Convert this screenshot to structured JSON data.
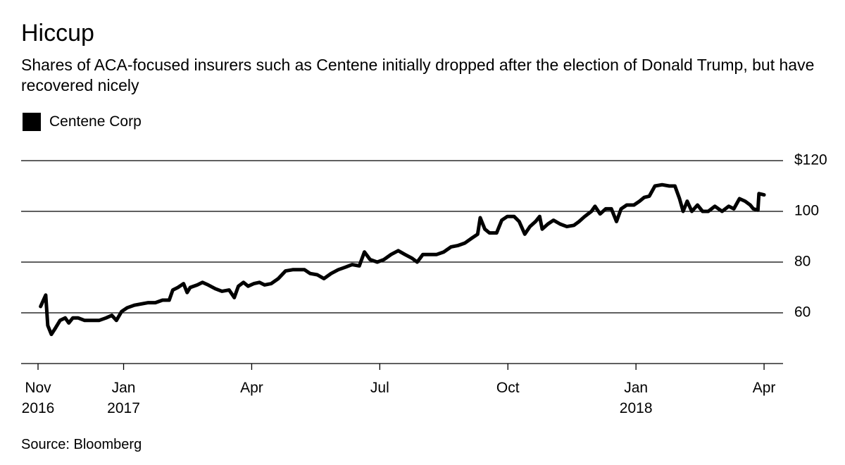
{
  "chart_data": {
    "type": "line",
    "title": "Hiccup",
    "subtitle": "Shares of ACA-focused insurers such as Centene initially dropped after the election of Donald Trump, but have recovered nicely",
    "source": "Source: Bloomberg",
    "legend": "top-left",
    "grid": true,
    "xlim": [
      2016.8,
      2018.287
    ],
    "xticks": [
      {
        "value": 2016.833,
        "label": "Nov\n2016"
      },
      {
        "value": 2017.0,
        "label": "Jan\n2017"
      },
      {
        "value": 2017.25,
        "label": "Apr"
      },
      {
        "value": 2017.5,
        "label": "Jul"
      },
      {
        "value": 2017.75,
        "label": "Oct"
      },
      {
        "value": 2018.0,
        "label": "Jan\n2018"
      },
      {
        "value": 2018.25,
        "label": "Apr"
      }
    ],
    "ylim": [
      40,
      120
    ],
    "yticks": [
      60,
      80,
      100,
      {
        "value": 120,
        "label": "$120"
      }
    ],
    "x": [
      2016.838,
      2016.848,
      2016.852,
      2016.859,
      2016.867,
      2016.876,
      2016.886,
      2016.893,
      2016.901,
      2016.911,
      2016.924,
      2016.938,
      2016.952,
      2016.966,
      2016.977,
      2016.986,
      2016.996,
      2017.007,
      2017.021,
      2017.034,
      2017.048,
      2017.062,
      2017.076,
      2017.089,
      2017.096,
      2017.106,
      2017.117,
      2017.124,
      2017.13,
      2017.144,
      2017.154,
      2017.165,
      2017.179,
      2017.192,
      2017.206,
      2017.216,
      2017.224,
      2017.234,
      2017.243,
      2017.254,
      2017.265,
      2017.275,
      2017.288,
      2017.302,
      2017.316,
      2017.33,
      2017.343,
      2017.353,
      2017.364,
      2017.378,
      2017.391,
      2017.405,
      2017.419,
      2017.433,
      2017.446,
      2017.46,
      2017.47,
      2017.481,
      2017.495,
      2017.508,
      2017.522,
      2017.536,
      2017.549,
      2017.563,
      2017.573,
      2017.584,
      2017.598,
      2017.611,
      2017.625,
      2017.639,
      2017.652,
      2017.666,
      2017.68,
      2017.691,
      2017.696,
      2017.705,
      2017.714,
      2017.728,
      2017.738,
      2017.749,
      2017.762,
      2017.772,
      2017.783,
      2017.793,
      2017.804,
      2017.812,
      2017.817,
      2017.828,
      2017.839,
      2017.852,
      2017.865,
      2017.879,
      2017.889,
      2017.9,
      2017.913,
      2017.92,
      2017.93,
      2017.941,
      2017.952,
      2017.962,
      2017.971,
      2017.982,
      2017.996,
      2018.007,
      2018.016,
      2018.026,
      2018.037,
      2018.051,
      2018.065,
      2018.076,
      2018.085,
      2018.092,
      2018.1,
      2018.109,
      2018.12,
      2018.13,
      2018.141,
      2018.154,
      2018.168,
      2018.181,
      2018.191,
      2018.202,
      2018.213,
      2018.223,
      2018.229,
      2018.238,
      2018.24,
      2018.25
    ],
    "series": [
      {
        "name": "Centene Corp",
        "color": "#000000",
        "values": [
          62.5,
          67,
          55,
          51.5,
          54,
          57,
          58,
          56,
          58,
          58,
          57,
          57,
          57,
          58,
          59,
          57,
          60.5,
          62,
          63,
          63.5,
          64,
          64,
          65,
          65,
          69,
          70,
          71.5,
          68,
          70,
          71,
          72,
          71,
          69.5,
          68.5,
          69,
          66,
          70.5,
          72,
          70.5,
          71.5,
          72,
          71,
          71.5,
          73.5,
          76.5,
          77,
          77,
          77,
          75.5,
          75,
          73.5,
          75.5,
          77,
          78,
          79,
          78.5,
          84,
          81,
          80,
          81,
          83,
          84.5,
          83,
          81.5,
          80,
          83,
          83,
          83,
          84,
          86,
          86.5,
          87.5,
          89.5,
          91,
          97.5,
          93,
          91.5,
          91.5,
          96.5,
          98,
          98,
          96,
          91,
          94,
          96,
          98,
          93,
          95,
          96.5,
          95,
          94,
          94.5,
          96,
          98,
          100,
          102,
          99,
          101,
          101,
          96,
          101,
          102.5,
          102.5,
          104,
          105.5,
          106,
          110,
          110.5,
          110,
          110,
          105,
          100,
          104,
          100,
          102.5,
          100,
          100,
          102,
          100,
          102,
          101,
          105,
          104,
          102.5,
          101,
          100.5,
          107,
          106.5
        ]
      }
    ]
  }
}
